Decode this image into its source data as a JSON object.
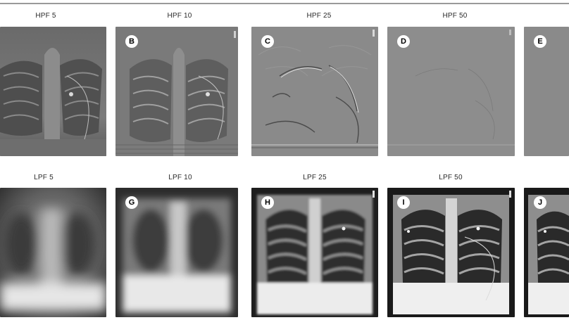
{
  "figure": {
    "rows": [
      {
        "kind": "high-pass",
        "panels": [
          {
            "title": "HPF 5",
            "label": ""
          },
          {
            "title": "HPF 10",
            "label": "B"
          },
          {
            "title": "HPF 25",
            "label": "C"
          },
          {
            "title": "HPF 50",
            "label": "D"
          },
          {
            "title": "",
            "label": "E"
          }
        ]
      },
      {
        "kind": "low-pass",
        "panels": [
          {
            "title": "LPF 5",
            "label": ""
          },
          {
            "title": "LPF 10",
            "label": "G"
          },
          {
            "title": "LPF 25",
            "label": "H"
          },
          {
            "title": "LPF 50",
            "label": "I"
          },
          {
            "title": "",
            "label": "J"
          }
        ]
      }
    ]
  }
}
